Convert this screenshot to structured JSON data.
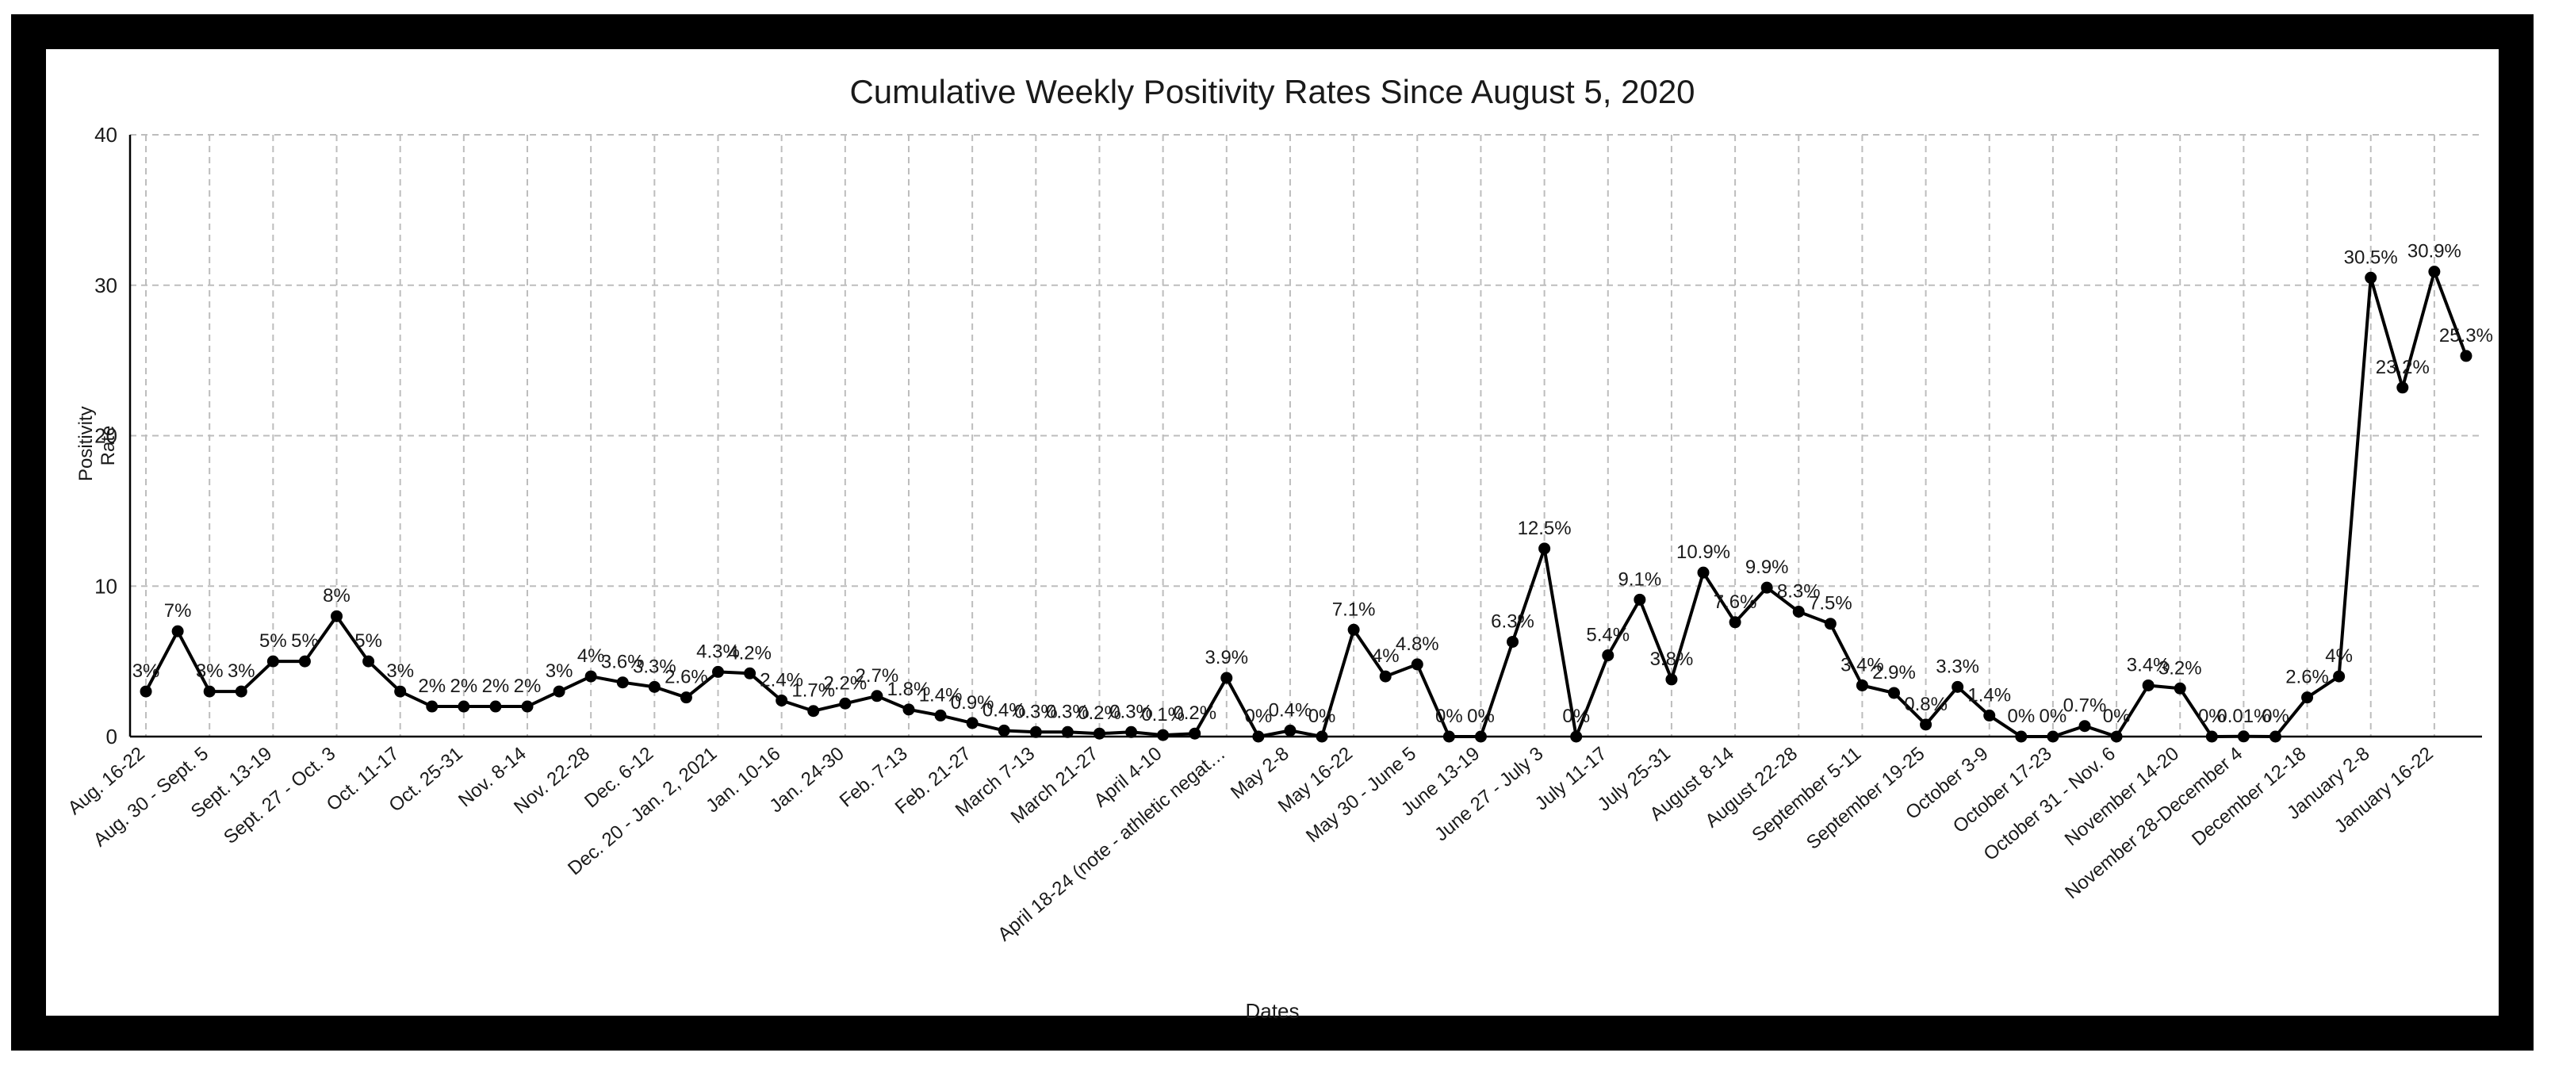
{
  "chart_data": {
    "type": "line",
    "title": "Cumulative Weekly Positivity Rates Since August 5, 2020",
    "xlabel": "Dates",
    "ylabel": "Positivity Rate",
    "ylim": [
      0,
      40
    ],
    "yticks": [
      0,
      10,
      20,
      30,
      40
    ],
    "grid": true,
    "legend": "none",
    "tick_labels": [
      "Aug. 16-22",
      "Aug. 30 - Sept. 5",
      "Sept. 13-19",
      "Sept. 27 - Oct. 3",
      "Oct. 11-17",
      "Oct. 25-31",
      "Nov. 8-14",
      "Nov. 22-28",
      "Dec. 6-12",
      "Dec. 20 - Jan. 2, 2021",
      "Jan. 10-16",
      "Jan. 24-30",
      "Feb. 7-13",
      "Feb. 21-27",
      "March 7-13",
      "March 21-27",
      "April 4-10",
      "April 18-24 (note - athletic negat…",
      "May 2-8",
      "May 16-22",
      "May 30 - June 5",
      "June 13-19",
      "June 27 - July 3",
      "July 11-17",
      "July 25-31",
      "August 8-14",
      "August 22-28",
      "September 5-11",
      "September 19-25",
      "October 3-9",
      "October 17-23",
      "October 31 - Nov. 6",
      "November 14-20",
      "November 28-December 4",
      "December 12-18",
      "January 2-8",
      "January 16-22"
    ],
    "series": [
      {
        "color": "#000000",
        "values": [
          3,
          7,
          3,
          3,
          5,
          5,
          8,
          5,
          3,
          2,
          2,
          2,
          2,
          3,
          4,
          3.6,
          3.3,
          2.6,
          4.3,
          4.2,
          2.4,
          1.7,
          2.2,
          2.7,
          1.8,
          1.4,
          0.9,
          0.4,
          0.3,
          0.3,
          0.2,
          0.3,
          0.1,
          0.2,
          3.9,
          0,
          0.4,
          0,
          7.1,
          4,
          4.8,
          0,
          0,
          6.3,
          12.5,
          0,
          5.4,
          9.1,
          3.8,
          10.9,
          7.6,
          9.9,
          8.3,
          7.5,
          3.4,
          2.9,
          0.8,
          3.3,
          1.4,
          0,
          0,
          0.7,
          0,
          3.4,
          3.2,
          0,
          0.01,
          0,
          2.6,
          4,
          30.5,
          23.2,
          30.9,
          25.3
        ],
        "data_labels": [
          "3%",
          "7%",
          "3%",
          "3%",
          "5%",
          "5%",
          "8%",
          "5%",
          "3%",
          "2%",
          "2%",
          "2%",
          "2%",
          "3%",
          "4%",
          "3.6%",
          "3.3%",
          "2.6%",
          "4.3%",
          "4.2%",
          "2.4%",
          "1.7%",
          "2.2%",
          "2.7%",
          "1.8%",
          "1.4%",
          "0.9%",
          "0.4%",
          "0.3%",
          "0.3%",
          "0.2%",
          "0.3%",
          "0.1%",
          "0.2%",
          "3.9%",
          "0%",
          "0.4%",
          "0%",
          "7.1%",
          "4%",
          "4.8%",
          "0%",
          "0%",
          "6.3%",
          "12.5%",
          "0%",
          "5.4%",
          "9.1%",
          "3.8%",
          "10.9%",
          "7.6%",
          "9.9%",
          "8.3%",
          "7.5%",
          "3.4%",
          "2.9%",
          "0.8%",
          "3.3%",
          "1.4%",
          "0%",
          "0%",
          "0.7%",
          "0%",
          "3.4%",
          "3.2%",
          "0%",
          "0.01%",
          "0%",
          "2.6%",
          "4%",
          "30.5%",
          "23.2%",
          "30.9%",
          "25.3%"
        ]
      }
    ]
  }
}
